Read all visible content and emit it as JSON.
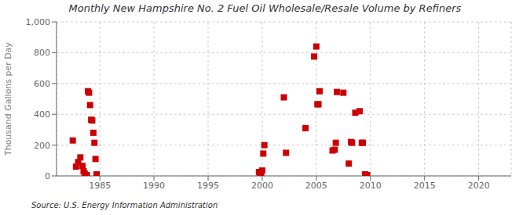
{
  "chart_data": {
    "type": "scatter",
    "title": "Monthly New Hampshire No. 2 Fuel Oil Wholesale/Resale Volume by Refiners",
    "ylabel": "Thousand Gallons per Day",
    "annotations": [
      "Source: U.S. Energy Information Administration"
    ],
    "x": [
      1982.5,
      1982.8,
      1983.0,
      1983.2,
      1983.4,
      1983.5,
      1983.6,
      1983.7,
      1983.8,
      1983.9,
      1984.0,
      1984.1,
      1984.2,
      1984.3,
      1984.4,
      1984.5,
      1984.6,
      1984.7,
      1999.7,
      1999.8,
      1999.9,
      2000.0,
      2000.1,
      2000.2,
      2002.0,
      2002.2,
      2004.0,
      2004.8,
      2005.0,
      2005.1,
      2005.2,
      2005.3,
      2006.5,
      2006.7,
      2006.8,
      2006.9,
      2007.5,
      2008.0,
      2008.2,
      2008.3,
      2008.6,
      2009.0,
      2009.2,
      2009.3,
      2009.5,
      2009.7
    ],
    "values": [
      230,
      60,
      90,
      120,
      65,
      30,
      15,
      5,
      5,
      550,
      540,
      460,
      365,
      360,
      280,
      215,
      110,
      10,
      25,
      5,
      5,
      35,
      145,
      200,
      510,
      150,
      310,
      775,
      840,
      465,
      465,
      550,
      165,
      170,
      215,
      545,
      540,
      80,
      220,
      215,
      410,
      420,
      215,
      215,
      10,
      5
    ],
    "color": "#cc0000",
    "marker": "square",
    "xlim": [
      1981,
      2023
    ],
    "xticks": [
      1985,
      1990,
      1995,
      2000,
      2005,
      2010,
      2015,
      2020
    ],
    "ylim": [
      0,
      1000
    ],
    "yticks": [
      0,
      200,
      400,
      600,
      800,
      {
        "value": 1000,
        "label": "1,000"
      }
    ],
    "grid": true
  }
}
